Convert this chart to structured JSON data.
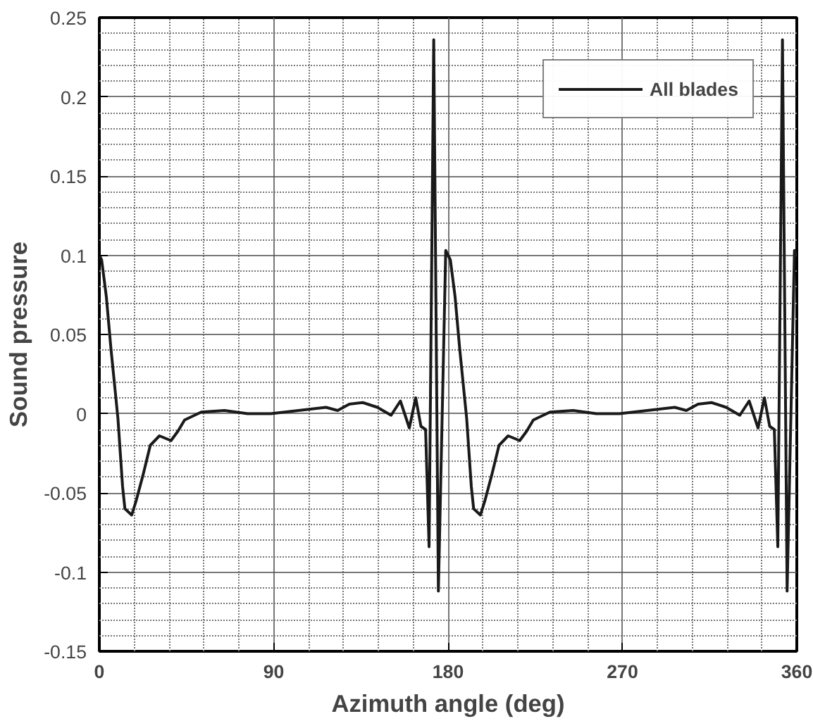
{
  "chart_data": {
    "type": "line",
    "xlabel": "Azimuth angle (deg)",
    "ylabel": "Sound pressure",
    "xlim": [
      0,
      360
    ],
    "xticks": [
      0,
      90,
      180,
      270,
      360
    ],
    "ylim": [
      -0.15,
      0.25
    ],
    "yticks": [
      -0.15,
      -0.1,
      -0.05,
      0,
      0.05,
      0.1,
      0.15,
      0.2,
      0.25
    ],
    "grid": true,
    "legend": "top right",
    "line_style": "solid",
    "marker": "none",
    "series": [
      {
        "name": "All blades",
        "color": "#1a1a1a",
        "x": [
          0,
          1.2,
          3.6,
          6,
          9.6,
          12,
          13.2,
          16.7,
          19,
          22.7,
          26.3,
          31,
          37,
          40.6,
          44,
          52.6,
          64.6,
          76.5,
          88.5,
          102.8,
          117,
          123,
          129,
          136,
          143.5,
          150.6,
          155.4,
          160,
          163.3,
          166,
          168.4,
          170.2,
          172.6,
          175,
          178.8,
          180,
          181.2,
          183.6,
          186,
          189.6,
          192,
          193.2,
          196.7,
          199,
          202.7,
          206.3,
          211,
          217,
          220.6,
          224,
          232.6,
          244.6,
          256.5,
          268.5,
          282.8,
          297,
          303,
          309,
          316,
          323.5,
          330.6,
          335.4,
          340,
          343.3,
          346,
          348.4,
          350.2,
          352.6,
          355,
          358.8,
          360
        ],
        "values": [
          0.1,
          0.097,
          0.074,
          0.041,
          -0.003,
          -0.046,
          -0.06,
          -0.064,
          -0.055,
          -0.038,
          -0.02,
          -0.014,
          -0.017,
          -0.011,
          -0.004,
          0.001,
          0.002,
          0.0,
          0.0,
          0.002,
          0.004,
          0.002,
          0.006,
          0.007,
          0.004,
          -0.001,
          0.008,
          -0.009,
          0.01,
          -0.008,
          -0.01,
          -0.084,
          0.236,
          -0.112,
          0.103,
          0.1,
          0.097,
          0.074,
          0.041,
          -0.003,
          -0.046,
          -0.06,
          -0.064,
          -0.055,
          -0.038,
          -0.02,
          -0.014,
          -0.017,
          -0.011,
          -0.004,
          0.001,
          0.002,
          0.0,
          0.0,
          0.002,
          0.004,
          0.002,
          0.006,
          0.007,
          0.004,
          -0.001,
          0.008,
          -0.009,
          0.01,
          -0.008,
          -0.01,
          -0.084,
          0.236,
          -0.112,
          0.103,
          0.1
        ]
      }
    ]
  }
}
